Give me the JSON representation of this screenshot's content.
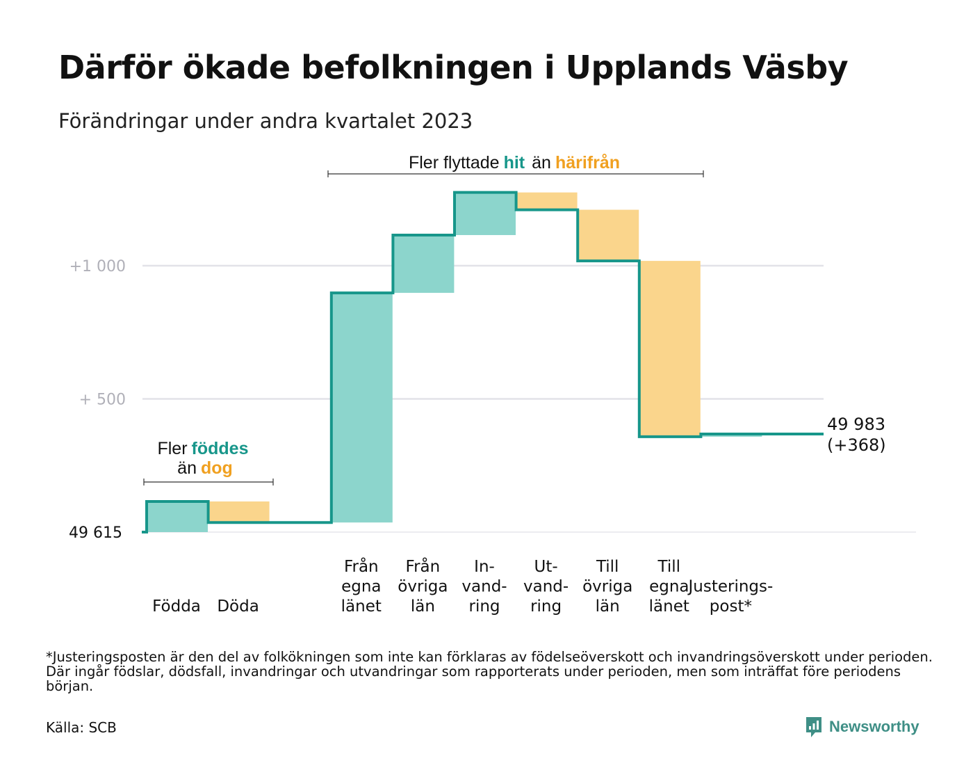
{
  "title": "Därför ökade befolkningen i Upplands Väsby",
  "subtitle": "Förändringar under andra kvartalet 2023",
  "colors": {
    "increase": "#8cd5cc",
    "decrease": "#fad58c",
    "line": "#17968a",
    "hit": "#17968a",
    "harifran": "#f0a020",
    "grid": "#e2e2e8"
  },
  "annotations": {
    "top": {
      "prefix": "Fler flyttade",
      "hit": "hit",
      "mid": "än",
      "harifran": "härifrån"
    },
    "left": {
      "prefix": "Fler",
      "foddes": "föddes",
      "mid": "än",
      "dog": "dog"
    }
  },
  "chart_data": {
    "type": "waterfall",
    "baseline": 49615,
    "baseline_label": "49  615",
    "yticks": [
      {
        "value": 1000,
        "label": "+1   000"
      },
      {
        "value": 500,
        "label": "+  500"
      }
    ],
    "categories": [
      {
        "label": [
          "Födda"
        ],
        "start": 0,
        "end": 115,
        "direction": "increase"
      },
      {
        "label": [
          "Döda"
        ],
        "start": 115,
        "end": 36,
        "direction": "decrease"
      },
      {
        "label": [],
        "start": 36,
        "end": 36,
        "direction": "none"
      },
      {
        "label": [
          "Från",
          "egna",
          "länet"
        ],
        "start": 36,
        "end": 898,
        "direction": "increase"
      },
      {
        "label": [
          "Från",
          "övriga",
          "län"
        ],
        "start": 898,
        "end": 1115,
        "direction": "increase"
      },
      {
        "label": [
          "In-",
          "vand-",
          "ring"
        ],
        "start": 1115,
        "end": 1275,
        "direction": "increase"
      },
      {
        "label": [
          "Ut-",
          "vand-",
          "ring"
        ],
        "start": 1275,
        "end": 1210,
        "direction": "decrease"
      },
      {
        "label": [
          "Till",
          "övriga",
          "län"
        ],
        "start": 1210,
        "end": 1018,
        "direction": "decrease"
      },
      {
        "label": [
          "Till",
          "egna",
          "länet"
        ],
        "start": 1018,
        "end": 358,
        "direction": "decrease"
      },
      {
        "label": [
          "Justerings-",
          "post*"
        ],
        "start": 358,
        "end": 368,
        "direction": "increase"
      }
    ],
    "end_value": "49 983",
    "end_change": "(+368)"
  },
  "footnote": "*Justeringsposten är den del av folkökningen som inte kan förklaras av födelseöverskott och invandringsöverskott under perioden. Där ingår födslar, dödsfall, invandringar och utvandringar som rapporterats under perioden, men som inträffat före periodens början.",
  "source": "Källa: SCB",
  "brand": "Newsworthy"
}
